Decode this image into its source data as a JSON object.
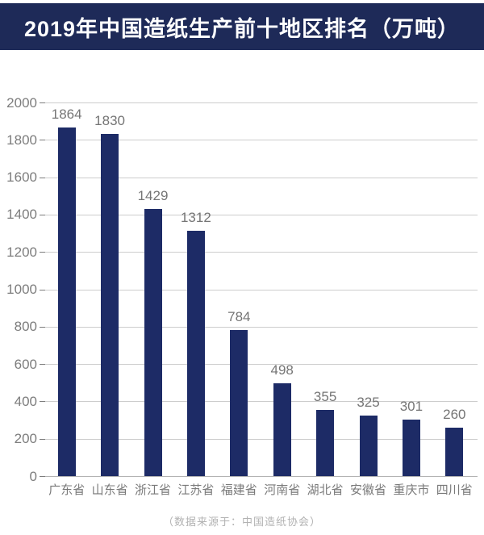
{
  "header": {
    "title": "2019年中国造纸生产前十地区排名（万吨）"
  },
  "chart_data": {
    "type": "bar",
    "title": "2019年中国造纸生产前十地区排名（万吨）",
    "categories": [
      "广东省",
      "山东省",
      "浙江省",
      "江苏省",
      "福建省",
      "河南省",
      "湖北省",
      "安徽省",
      "重庆市",
      "四川省"
    ],
    "values": [
      1864,
      1830,
      1429,
      1312,
      784,
      498,
      355,
      325,
      301,
      260
    ],
    "xlabel": "",
    "ylabel": "",
    "ylim": [
      0,
      2000
    ],
    "yticks": [
      0,
      200,
      400,
      600,
      800,
      1000,
      1200,
      1400,
      1600,
      1800,
      2000
    ],
    "grid": true,
    "show_value_labels": true,
    "legend": null,
    "unit": "万吨"
  },
  "footer": {
    "source_note": "（数据来源于：中国造纸协会）"
  },
  "colors": {
    "background": "#ffffff",
    "banner_bg": "#1e2a58",
    "banner_text": "#ffffff",
    "bar": "#1d2b66",
    "gridline": "#cdcdcd",
    "baseline": "#b3b3b3",
    "tick_label": "#7d7d7d",
    "value_label": "#757575",
    "category_label": "#7a7a7a",
    "source_text": "#b2b2b2"
  }
}
